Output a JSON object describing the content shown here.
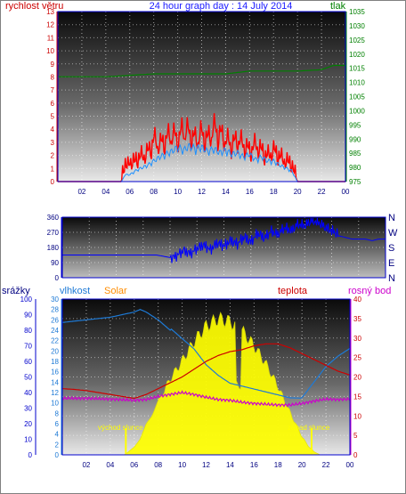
{
  "title": "24 hour graph day : 14 July 2014",
  "colors": {
    "wind": "#ff0000",
    "gust": "#1e90ff",
    "pressure": "#008000",
    "direction": "#0000ff",
    "humidity": "#1e7ad6",
    "solar": "#ffff00",
    "temperature": "#cc0000",
    "dewpoint": "#cc00cc",
    "rain": "#0000ff",
    "title": "#1a1aff",
    "frame": "#0000ff"
  },
  "chart_data": [
    {
      "type": "line",
      "title": "24 hour graph day : 14 July 2014",
      "x_ticks": [
        "02",
        "04",
        "06",
        "08",
        "10",
        "12",
        "14",
        "16",
        "18",
        "20",
        "22",
        "00"
      ],
      "y_left": {
        "label": "rychlost větru",
        "ticks": [
          "0",
          "1",
          "2",
          "3",
          "4",
          "5",
          "6",
          "7",
          "8",
          "9",
          "10",
          "11",
          "12",
          "13"
        ],
        "range": [
          0,
          13
        ]
      },
      "y_right": {
        "label": "tlak",
        "ticks": [
          "975",
          "980",
          "985",
          "990",
          "995",
          "1000",
          "1005",
          "1010",
          "1015",
          "1020",
          "1025",
          "1030",
          "1035"
        ],
        "range": [
          975,
          1035
        ]
      },
      "series": [
        {
          "name": "tlak",
          "axis": "right",
          "x": [
            0,
            2,
            4,
            6,
            8,
            10,
            12,
            14,
            16,
            18,
            20,
            22,
            23,
            24
          ],
          "values": [
            1012,
            1012,
            1012,
            1012.5,
            1013,
            1013,
            1013,
            1013,
            1014,
            1014,
            1014,
            1014.5,
            1016,
            1016
          ]
        },
        {
          "name": "rychlost větru",
          "axis": "left",
          "x": [
            0,
            5.3,
            5.6,
            5.8,
            6,
            6.4,
            6.8,
            7.2,
            7.6,
            8,
            8.5,
            9,
            9.5,
            10,
            10.5,
            11,
            11.5,
            12,
            12.5,
            13,
            13.5,
            14,
            14.5,
            15,
            15.5,
            16,
            16.5,
            17,
            17.5,
            18,
            18.5,
            19,
            19.3,
            19.6,
            20,
            24
          ],
          "values": [
            0,
            0,
            1.5,
            1,
            1.5,
            1.5,
            2,
            2,
            2.5,
            3.5,
            3,
            3.5,
            4,
            3.5,
            4.5,
            4,
            3.5,
            4,
            3.5,
            4.5,
            4,
            3.5,
            3,
            3.5,
            3,
            2.5,
            3,
            2.5,
            2,
            2.5,
            2,
            1.5,
            1.5,
            1,
            0,
            0
          ]
        },
        {
          "name": "",
          "axis": "left",
          "x": [
            0,
            5.3,
            5.6,
            6,
            6.5,
            7,
            7.5,
            8,
            8.5,
            9,
            9.5,
            10,
            10.5,
            11,
            11.5,
            12,
            12.5,
            13,
            13.5,
            14,
            14.5,
            15,
            15.5,
            16,
            16.5,
            17,
            17.5,
            18,
            18.5,
            19,
            19.5,
            20,
            24
          ],
          "values": [
            0,
            0,
            0.5,
            0.5,
            0.8,
            1,
            1.2,
            1.5,
            1.8,
            2,
            2.2,
            2.5,
            2.3,
            2.6,
            2.4,
            2.5,
            2.2,
            2.4,
            2.1,
            2.3,
            2,
            2.1,
            1.8,
            2,
            1.6,
            1.8,
            1.5,
            1.5,
            1.2,
            1,
            0.8,
            0,
            0
          ]
        }
      ]
    },
    {
      "type": "line",
      "x_ticks": [
        "02",
        "04",
        "06",
        "08",
        "10",
        "12",
        "14",
        "16",
        "18",
        "20",
        "22",
        "00"
      ],
      "y_left": {
        "ticks": [
          "0",
          "90",
          "180",
          "270",
          "360"
        ],
        "range": [
          0,
          360
        ]
      },
      "y_right_labels": [
        "N",
        "W",
        "S",
        "E",
        "N"
      ],
      "series": [
        {
          "name": "",
          "x": [
            0,
            1,
            2,
            3,
            4,
            5,
            6,
            7,
            8,
            8.5,
            9,
            9.5,
            10,
            10.5,
            11,
            11.5,
            12,
            12.5,
            13,
            13.5,
            14,
            14.5,
            15,
            15.5,
            16,
            16.5,
            17,
            17.5,
            18,
            18.5,
            19,
            19.5,
            20,
            20.5,
            21,
            21.5,
            22,
            22.5,
            23,
            23.5,
            24
          ],
          "values": [
            135,
            135,
            135,
            135,
            135,
            135,
            135,
            135,
            120,
            140,
            170,
            150,
            180,
            200,
            170,
            210,
            190,
            220,
            200,
            240,
            210,
            260,
            230,
            270,
            250,
            290,
            270,
            310,
            300,
            330,
            320,
            290,
            270,
            250,
            240,
            230,
            230,
            230,
            220,
            230,
            230
          ]
        }
      ]
    },
    {
      "type": "line",
      "x_ticks": [
        "02",
        "04",
        "06",
        "08",
        "10",
        "12",
        "14",
        "16",
        "18",
        "20",
        "22",
        "00"
      ],
      "legend": [
        "srážky",
        "vlhkost",
        "Solar",
        "teplota",
        "rosný bod"
      ],
      "y_left_rain": {
        "label": "srážky",
        "ticks": [
          "0",
          "10",
          "20",
          "30",
          "40",
          "50",
          "60",
          "70",
          "80",
          "90",
          "100"
        ],
        "range": [
          0,
          100
        ]
      },
      "y_left_humidity": {
        "label": "vlhkost",
        "ticks": [
          "0",
          "2",
          "4",
          "6",
          "8",
          "10",
          "12",
          "14",
          "16",
          "18",
          "20",
          "22",
          "24",
          "26",
          "28",
          "30"
        ],
        "range": [
          0,
          30
        ]
      },
      "y_right": {
        "label": "teplota / rosný bod",
        "ticks": [
          "0",
          "5",
          "10",
          "15",
          "20",
          "25",
          "30",
          "35",
          "40"
        ],
        "range": [
          0,
          40
        ]
      },
      "annotations": [
        {
          "text": "východ slunce",
          "x": 5.3
        },
        {
          "text": "západ slunce",
          "x": 20.8
        }
      ],
      "series": [
        {
          "name": "vlhkost",
          "x": [
            0,
            2,
            4,
            5,
            6,
            6.5,
            7,
            8,
            9,
            10,
            11,
            12,
            13,
            14,
            15,
            16,
            17,
            18,
            19,
            20,
            21,
            22,
            23,
            24
          ],
          "values": [
            25.5,
            26,
            26.5,
            27,
            27.5,
            28,
            27.5,
            26,
            24,
            22,
            20,
            17,
            15,
            13.5,
            13,
            12.5,
            12,
            11.5,
            11,
            11,
            14,
            17,
            19,
            20.5
          ]
        },
        {
          "name": "teplota",
          "x": [
            0,
            1,
            2,
            3,
            4,
            5,
            6,
            7,
            8,
            9,
            10,
            11,
            12,
            13,
            14,
            15,
            16,
            17,
            18,
            19,
            20,
            21,
            22,
            23,
            24
          ],
          "values": [
            17,
            16.8,
            16.5,
            16,
            15.5,
            15,
            14.5,
            15.5,
            17,
            18.5,
            20,
            22,
            24,
            25.5,
            26.5,
            27,
            28,
            28.5,
            28.5,
            27.5,
            26,
            24.5,
            23,
            21.5,
            20.5
          ]
        },
        {
          "name": "rosný bod",
          "x": [
            0,
            2,
            4,
            6,
            7,
            8,
            9,
            10,
            11,
            12,
            13,
            14,
            15,
            16,
            17,
            18,
            19,
            20,
            21,
            22,
            23,
            24
          ],
          "values": [
            14.5,
            14.5,
            14.3,
            14,
            14.2,
            15,
            15.5,
            16,
            15.5,
            14.8,
            14.2,
            14,
            13.5,
            13.2,
            13,
            12.8,
            12.8,
            13.2,
            13.8,
            14.3,
            14.2,
            14.3
          ]
        },
        {
          "name": "Solar",
          "x": [
            0,
            5.2,
            6,
            6.5,
            7,
            7.5,
            8,
            9,
            10,
            11,
            12,
            13,
            14,
            15,
            16,
            17,
            18,
            19,
            19.5,
            20,
            20.5,
            21,
            21.5,
            24
          ],
          "values": [
            0,
            0,
            0.05,
            0.1,
            0.2,
            0.25,
            0.35,
            0.5,
            0.62,
            0.75,
            0.85,
            0.9,
            0.88,
            0.82,
            0.72,
            0.6,
            0.45,
            0.28,
            0.2,
            0.12,
            0.06,
            0.02,
            0,
            0
          ]
        }
      ]
    }
  ]
}
